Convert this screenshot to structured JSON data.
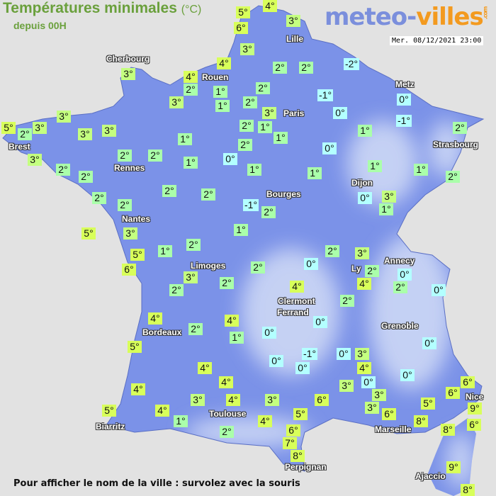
{
  "header": {
    "title": "Températures minimales",
    "unit": "(°C)",
    "subtitle": "depuis 00H",
    "logo_part1": "meteo-",
    "logo_part2": "villes",
    "logo_suffix": ".com",
    "datetime": "Mer. 08/12/2021 23:00"
  },
  "footer": "Pour afficher le nom de la ville : survolez avec la souris",
  "colors": {
    "map_fill": "#7b92e8",
    "relief_light": "#d2dcf6",
    "cold_label": "#b3ffff",
    "cool_label": "#aaffaa",
    "mild_label": "#c4ff80",
    "warm_label": "#d8ff5a",
    "logo_blue": "#7b8fdc",
    "logo_orange": "#f39a1f",
    "title_green": "#6aa03c"
  },
  "cities": [
    "Lille",
    "Cherbourg",
    "Rouen",
    "Metz",
    "Paris",
    "Brest",
    "Strasbourg",
    "Rennes",
    "Dijon",
    "Bourges",
    "Nantes",
    "Annecy",
    "Limoges",
    "Ly",
    "Clermont",
    "Ferrand",
    "Grenoble",
    "Bordeaux",
    "Toulouse",
    "Biarritz",
    "Marseille",
    "Nice",
    "Perpignan",
    "Ajaccio"
  ],
  "temperatures": [
    "5°",
    "4°",
    "6°",
    "3°",
    "3°",
    "4°",
    "2°",
    "2°",
    "-2°",
    "3°",
    "4°",
    "2°",
    "1°",
    "2°",
    "3°",
    "1°",
    "2°",
    "-1°",
    "0°",
    "3°",
    "0°",
    "-1°",
    "3°",
    "5°",
    "3°",
    "2°",
    "3°",
    "3°",
    "2°",
    "1°",
    "1°",
    "1°",
    "1°",
    "2°",
    "2°",
    "0°",
    "3°",
    "2°",
    "2°",
    "1°",
    "0°",
    "1°",
    "1°",
    "1°",
    "2°",
    "2°",
    "1°",
    "2°",
    "2°",
    "2°",
    "0°",
    "3°",
    "2°",
    "2°",
    "-1°",
    "2°",
    "1°",
    "5°",
    "3°",
    "1°",
    "2°",
    "5°",
    "1°",
    "2°",
    "3°",
    "6°",
    "3°",
    "2°",
    "0°",
    "2°",
    "0°",
    "2°",
    "2°",
    "4°",
    "4°",
    "2°",
    "0°",
    "2°",
    "4°",
    "4°",
    "0°",
    "2°",
    "0°",
    "1°",
    "5°",
    "0°",
    "-1°",
    "0°",
    "3°",
    "0°",
    "4°",
    "0°",
    "4°",
    "0°",
    "0°",
    "3°",
    "4°",
    "6°",
    "6°",
    "4°",
    "3°",
    "3°",
    "4°",
    "3°",
    "6°",
    "5°",
    "3°",
    "9°",
    "5°",
    "4°",
    "5°",
    "6°",
    "1°",
    "4°",
    "8°",
    "6°",
    "8°",
    "2°",
    "6°",
    "7°",
    "8°",
    "9°",
    "8°"
  ]
}
